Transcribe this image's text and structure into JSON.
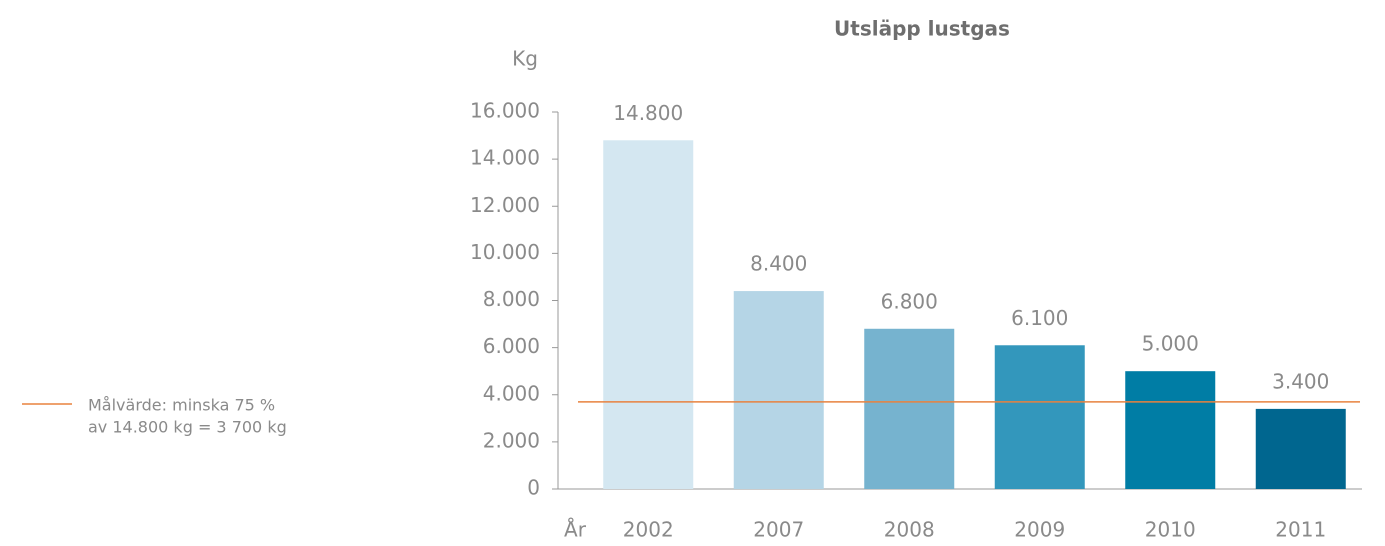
{
  "chart_data": {
    "type": "bar",
    "title": "Utsläpp lustgas",
    "y_label": "Kg",
    "x_label": "År",
    "categories": [
      "2002",
      "2007",
      "2008",
      "2009",
      "2010",
      "2011"
    ],
    "values": [
      14800,
      8400,
      6800,
      6100,
      5000,
      3400
    ],
    "value_labels": [
      "14.800",
      "8.400",
      "6.800",
      "6.100",
      "5.000",
      "3.400"
    ],
    "colors": [
      "#d4e7f1",
      "#b5d5e6",
      "#76b3cf",
      "#3397bc",
      "#007da5",
      "#00668f"
    ],
    "ylim": [
      0,
      16000
    ],
    "yticks": [
      0,
      {
        "value": 2000,
        "label": "2.000"
      },
      {
        "value": 4000,
        "label": "4.000"
      },
      {
        "value": 6000,
        "label": "6.000"
      },
      {
        "value": 8000,
        "label": "8.000"
      },
      {
        "value": 10000,
        "label": "10.000"
      },
      {
        "value": 12000,
        "label": "12.000"
      },
      {
        "value": 14000,
        "label": "14.000"
      },
      {
        "value": 16000,
        "label": "16.000"
      }
    ],
    "target": {
      "value": 3700,
      "color": "#e8823f",
      "label_lines": [
        "Målvärde: minska 75 %",
        "av 14.800 kg = 3 700 kg"
      ]
    }
  }
}
